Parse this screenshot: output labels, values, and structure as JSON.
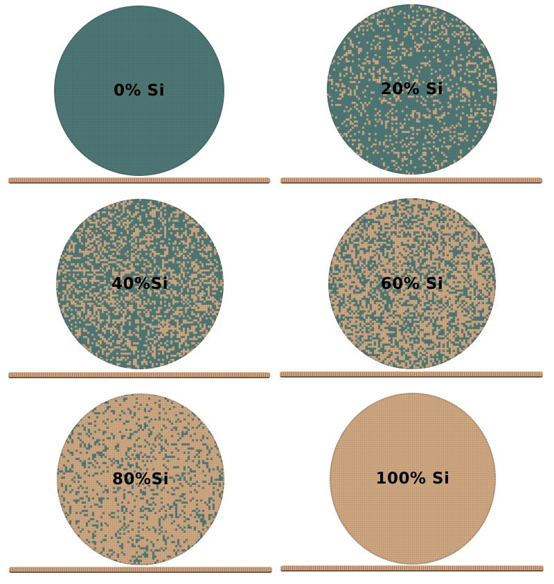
{
  "colors": {
    "silicon": "#d2aa84",
    "matrix": "#4f7a78",
    "background": "#ffffff"
  },
  "panels": [
    {
      "label": "0% Si",
      "si_fraction": 0.0
    },
    {
      "label": "20% Si",
      "si_fraction": 0.2
    },
    {
      "label": "40%Si",
      "si_fraction": 0.4
    },
    {
      "label": "60% Si",
      "si_fraction": 0.6
    },
    {
      "label": "80%Si",
      "si_fraction": 0.8
    },
    {
      "label": "100% Si",
      "si_fraction": 1.0
    }
  ]
}
